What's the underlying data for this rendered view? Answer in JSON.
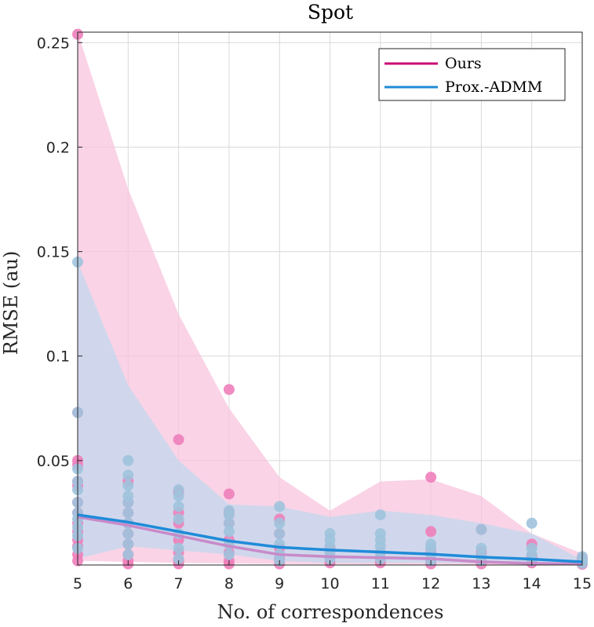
{
  "chart_data": {
    "type": "line",
    "title": "Spot",
    "xlabel": "No. of correspondences",
    "ylabel": "RMSE (au)",
    "xlim": [
      5,
      15
    ],
    "ylim": [
      0,
      0.255
    ],
    "xticks": [
      5,
      6,
      7,
      8,
      9,
      10,
      11,
      12,
      13,
      14,
      15
    ],
    "yticks": [
      0.05,
      0.1,
      0.15,
      0.2,
      0.25
    ],
    "ytick_labels": [
      "0.05",
      "0.1",
      "0.15",
      "0.2",
      "0.25"
    ],
    "grid": true,
    "legend_position": "top-right",
    "series": [
      {
        "name": "Ours",
        "color": "#cc0b73",
        "band_color": "#f8c4dd",
        "x": [
          5,
          6,
          7,
          8,
          9,
          10,
          11,
          12,
          13,
          14,
          15
        ],
        "mean": [
          0.023,
          0.019,
          0.014,
          0.009,
          0.005,
          0.004,
          0.0035,
          0.003,
          0.0015,
          0.0008,
          0.0005
        ],
        "band_upper": [
          0.255,
          0.18,
          0.12,
          0.075,
          0.042,
          0.026,
          0.04,
          0.041,
          0.033,
          0.015,
          0.0055
        ],
        "band_lower": [
          0.002,
          0.0015,
          0.001,
          0.0008,
          0.0005,
          0.0004,
          0.0003,
          0.0003,
          0.0002,
          0.0001,
          0.0001
        ],
        "points": [
          [
            5,
            0.254
          ],
          [
            5,
            0.073
          ],
          [
            5,
            0.05
          ],
          [
            5,
            0.048
          ],
          [
            5,
            0.04
          ],
          [
            5,
            0.038
          ],
          [
            5,
            0.03
          ],
          [
            5,
            0.025
          ],
          [
            5,
            0.02
          ],
          [
            5,
            0.016
          ],
          [
            5,
            0.012
          ],
          [
            5,
            0.009
          ],
          [
            5,
            0.005
          ],
          [
            5,
            0.002
          ],
          [
            6,
            0.04
          ],
          [
            6,
            0.03
          ],
          [
            6,
            0.025
          ],
          [
            6,
            0.02
          ],
          [
            6,
            0.015
          ],
          [
            6,
            0.01
          ],
          [
            6,
            0.005
          ],
          [
            6,
            0.002
          ],
          [
            6,
            0.0005
          ],
          [
            7,
            0.06
          ],
          [
            7,
            0.035
          ],
          [
            7,
            0.025
          ],
          [
            7,
            0.02
          ],
          [
            7,
            0.012
          ],
          [
            7,
            0.006
          ],
          [
            7,
            0.002
          ],
          [
            7,
            0.0005
          ],
          [
            8,
            0.084
          ],
          [
            8,
            0.034
          ],
          [
            8,
            0.025
          ],
          [
            8,
            0.02
          ],
          [
            8,
            0.012
          ],
          [
            8,
            0.006
          ],
          [
            8,
            0.002
          ],
          [
            8,
            0.0005
          ],
          [
            9,
            0.022
          ],
          [
            9,
            0.015
          ],
          [
            9,
            0.008
          ],
          [
            9,
            0.003
          ],
          [
            9,
            0.0005
          ],
          [
            10,
            0.008
          ],
          [
            10,
            0.004
          ],
          [
            10,
            0.001
          ],
          [
            11,
            0.006
          ],
          [
            11,
            0.003
          ],
          [
            11,
            0.001
          ],
          [
            12,
            0.042
          ],
          [
            12,
            0.016
          ],
          [
            12,
            0.006
          ],
          [
            12,
            0.002
          ],
          [
            12,
            0.0005
          ],
          [
            13,
            0.017
          ],
          [
            13,
            0.006
          ],
          [
            13,
            0.002
          ],
          [
            13,
            0.0005
          ],
          [
            14,
            0.01
          ],
          [
            14,
            0.004
          ],
          [
            14,
            0.001
          ],
          [
            15,
            0.003
          ],
          [
            15,
            0.001
          ],
          [
            15,
            0.0003
          ]
        ]
      },
      {
        "name": "Prox.-ADMM",
        "color": "#1f8bd9",
        "band_color": "#bad9f0",
        "x": [
          5,
          6,
          7,
          8,
          9,
          10,
          11,
          12,
          13,
          14,
          15
        ],
        "mean": [
          0.024,
          0.0205,
          0.016,
          0.0115,
          0.0085,
          0.0072,
          0.0062,
          0.0052,
          0.0038,
          0.0028,
          0.0015
        ],
        "band_upper": [
          0.145,
          0.086,
          0.05,
          0.029,
          0.028,
          0.023,
          0.026,
          0.024,
          0.02,
          0.015,
          0.0025
        ],
        "band_lower": [
          0.003,
          0.009,
          0.007,
          0.005,
          0.002,
          0.001,
          0.001,
          0.001,
          0.0008,
          0.0005,
          0.0003
        ],
        "points": [
          [
            5,
            0.145
          ],
          [
            5,
            0.073
          ],
          [
            5,
            0.046
          ],
          [
            5,
            0.04
          ],
          [
            5,
            0.036
          ],
          [
            5,
            0.03
          ],
          [
            5,
            0.025
          ],
          [
            5,
            0.022
          ],
          [
            5,
            0.018
          ],
          [
            5,
            0.014
          ],
          [
            5,
            0.008
          ],
          [
            6,
            0.05
          ],
          [
            6,
            0.043
          ],
          [
            6,
            0.038
          ],
          [
            6,
            0.033
          ],
          [
            6,
            0.03
          ],
          [
            6,
            0.025
          ],
          [
            6,
            0.02
          ],
          [
            6,
            0.015
          ],
          [
            6,
            0.01
          ],
          [
            6,
            0.005
          ],
          [
            7,
            0.036
          ],
          [
            7,
            0.033
          ],
          [
            7,
            0.028
          ],
          [
            7,
            0.022
          ],
          [
            7,
            0.015
          ],
          [
            7,
            0.008
          ],
          [
            7,
            0.003
          ],
          [
            8,
            0.026
          ],
          [
            8,
            0.024
          ],
          [
            8,
            0.02
          ],
          [
            8,
            0.016
          ],
          [
            8,
            0.01
          ],
          [
            8,
            0.005
          ],
          [
            9,
            0.028
          ],
          [
            9,
            0.02
          ],
          [
            9,
            0.015
          ],
          [
            9,
            0.01
          ],
          [
            9,
            0.005
          ],
          [
            9,
            0.002
          ],
          [
            10,
            0.015
          ],
          [
            10,
            0.012
          ],
          [
            10,
            0.009
          ],
          [
            10,
            0.006
          ],
          [
            10,
            0.003
          ],
          [
            11,
            0.024
          ],
          [
            11,
            0.015
          ],
          [
            11,
            0.012
          ],
          [
            11,
            0.009
          ],
          [
            11,
            0.006
          ],
          [
            11,
            0.003
          ],
          [
            12,
            0.01
          ],
          [
            12,
            0.008
          ],
          [
            12,
            0.005
          ],
          [
            12,
            0.002
          ],
          [
            13,
            0.017
          ],
          [
            13,
            0.008
          ],
          [
            13,
            0.005
          ],
          [
            13,
            0.002
          ],
          [
            14,
            0.02
          ],
          [
            14,
            0.008
          ],
          [
            14,
            0.005
          ],
          [
            14,
            0.002
          ],
          [
            15,
            0.004
          ],
          [
            15,
            0.002
          ],
          [
            15,
            0.0008
          ]
        ]
      }
    ]
  }
}
